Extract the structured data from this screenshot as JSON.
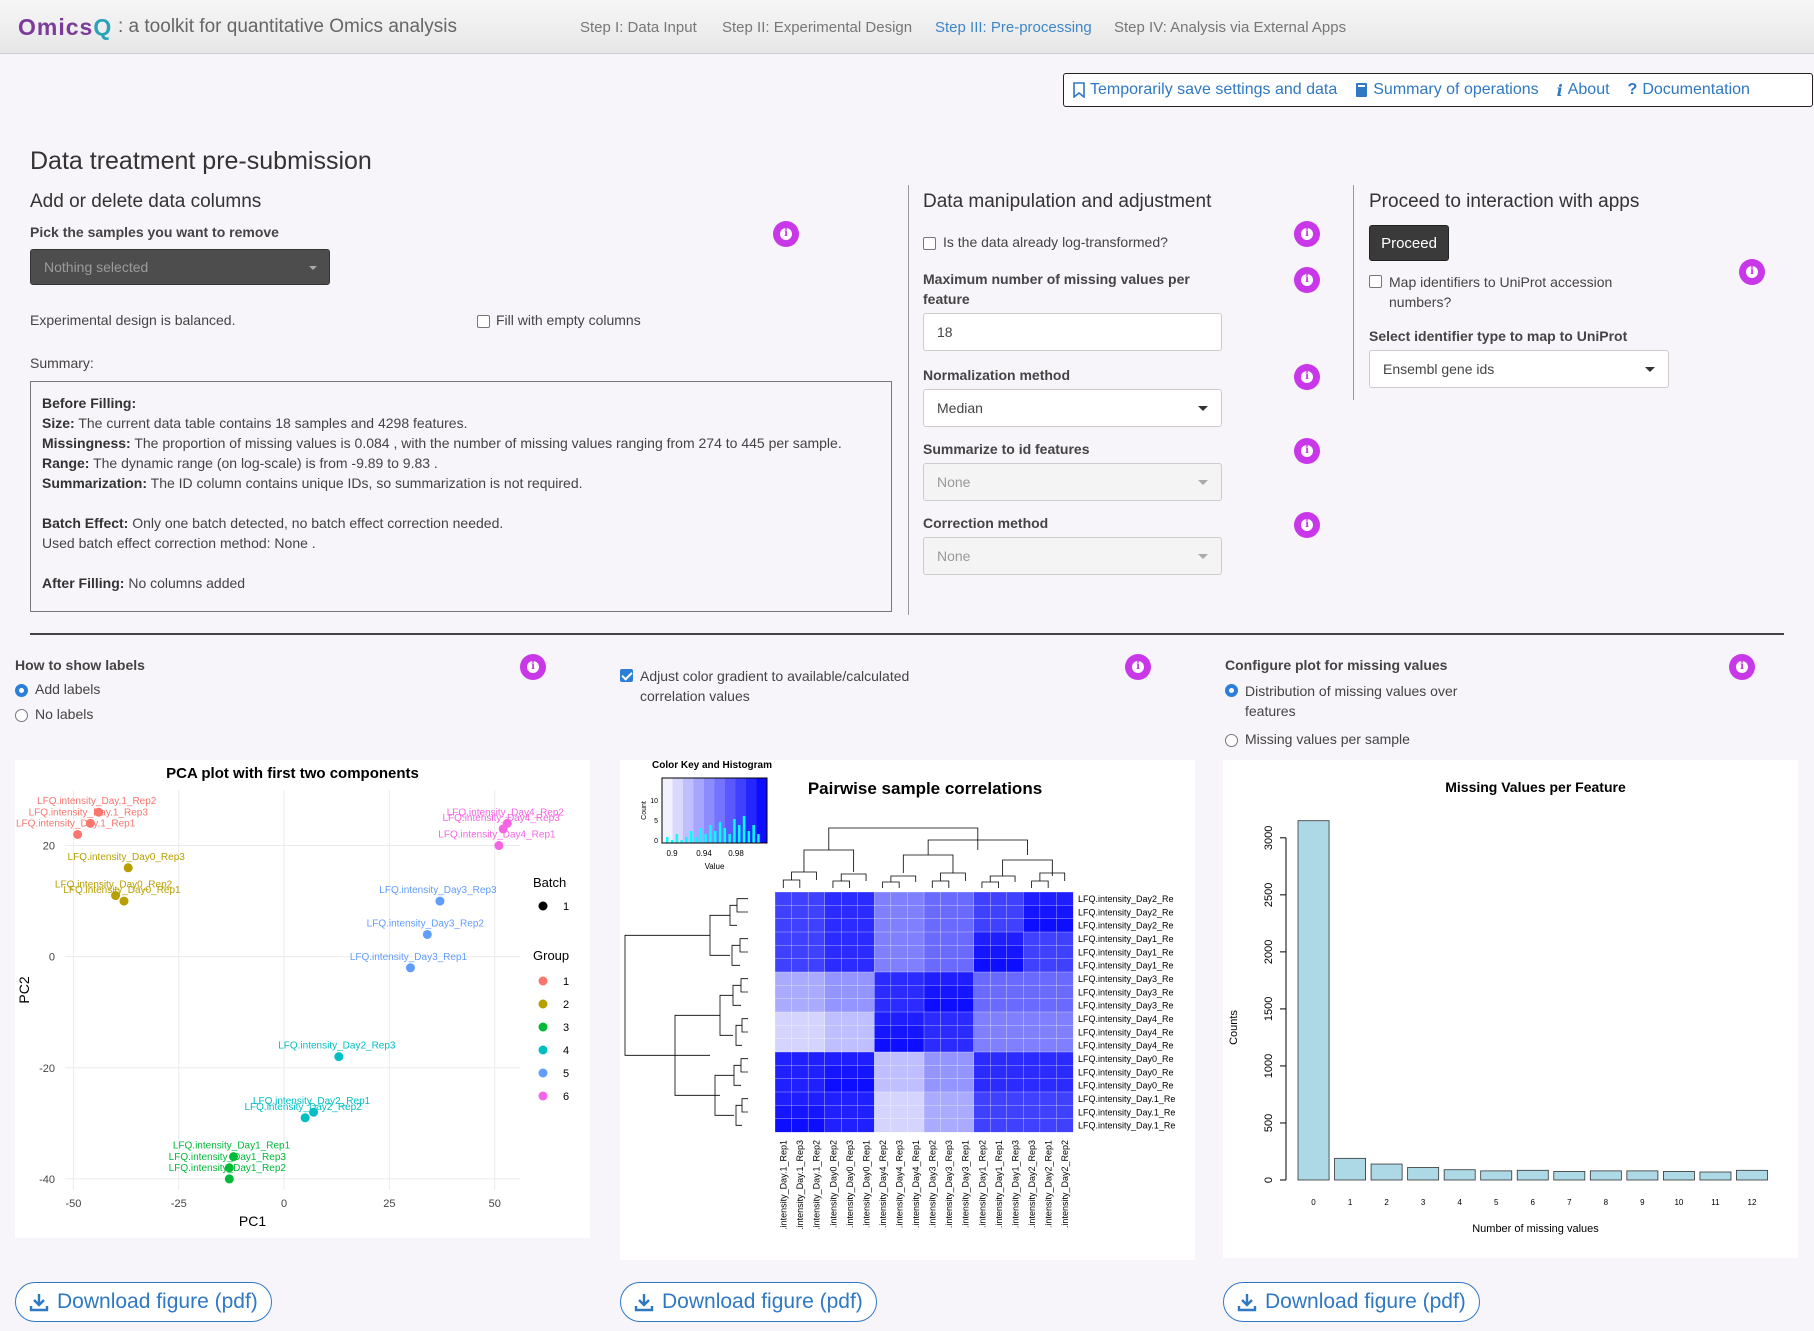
{
  "header": {
    "logo_part1": "Omics",
    "logo_part2": "Q",
    "tagline": ": a toolkit for quantitative Omics analysis",
    "nav": [
      "Step I: Data Input",
      "Step II: Experimental Design",
      "Step III: Pre-processing",
      "Step IV: Analysis via External Apps"
    ],
    "active_nav": "Step III: Pre-processing"
  },
  "actions": {
    "save": "Temporarily save settings and data",
    "summary": "Summary of operations",
    "about": "About",
    "docs": "Documentation"
  },
  "page_title": "Data treatment pre-submission",
  "columns_panel": {
    "heading": "Add or delete data columns",
    "pick_label": "Pick the samples you want to remove",
    "pick_value": "Nothing selected",
    "balanced_text": "Experimental design is balanced.",
    "fill_label": "Fill with empty columns",
    "fill_checked": false,
    "summary_label": "Summary:",
    "summary": {
      "before_title": "Before Filling:",
      "size_key": "Size:",
      "size_val": "The current data table contains 18 samples and 4298 features.",
      "miss_key": "Missingness:",
      "miss_val": "The proportion of missing values is 0.084 , with the number of missing values ranging from 274 to 445 per sample.",
      "range_key": "Range:",
      "range_val": "The dynamic range (on log-scale) is from -9.89 to 9.83 .",
      "summ_key": "Summarization:",
      "summ_val": "The ID column contains unique IDs, so summarization is not required.",
      "batch_key": "Batch Effect:",
      "batch_val": "Only one batch detected, no batch effect correction needed.",
      "batch_method": "Used batch effect correction method: None .",
      "after_key": "After Filling:",
      "after_val": "No columns added"
    }
  },
  "manip_panel": {
    "heading": "Data manipulation and adjustment",
    "log_label": "Is the data already log-transformed?",
    "log_checked": false,
    "maxmiss_label": "Maximum number of missing values per feature",
    "maxmiss_value": "18",
    "norm_label": "Normalization method",
    "norm_value": "Median",
    "summarize_label": "Summarize to id features",
    "summarize_value": "None",
    "correction_label": "Correction method",
    "correction_value": "None"
  },
  "proceed_panel": {
    "heading": "Proceed to interaction with apps",
    "proceed_btn": "Proceed",
    "map_label": "Map identifiers to UniProt accession numbers?",
    "map_checked": false,
    "idtype_label": "Select identifier type to map to UniProt",
    "idtype_value": "Ensembl gene ids"
  },
  "plot_controls": {
    "labels_heading": "How to show labels",
    "labels_options": [
      "Add labels",
      "No labels"
    ],
    "labels_selected": "Add labels",
    "gradient_label": "Adjust color gradient to available/calculated correlation values",
    "gradient_checked": true,
    "missing_heading": "Configure plot for missing values",
    "missing_options": [
      "Distribution of missing values over features",
      "Missing values per sample"
    ],
    "missing_selected": "Distribution of missing values over features"
  },
  "download_label": "Download figure (pdf)",
  "colors": {
    "accent": "#2f78c4",
    "info": "#c837e8",
    "bar": "#add8e6"
  },
  "chart_data": [
    {
      "type": "scatter",
      "title": "PCA plot with first two components",
      "xlabel": "PC1",
      "ylabel": "PC2",
      "xlim": [
        -52,
        56
      ],
      "ylim": [
        -42,
        30
      ],
      "xticks": [
        -50,
        -25,
        0,
        25,
        50
      ],
      "yticks": [
        20,
        0,
        -20,
        -40
      ],
      "legend_batch_title": "Batch",
      "legend_batch": [
        "1"
      ],
      "legend_group_title": "Group",
      "groups": [
        {
          "name": "1",
          "color": "#f8766d"
        },
        {
          "name": "2",
          "color": "#b79f00"
        },
        {
          "name": "3",
          "color": "#00ba38"
        },
        {
          "name": "4",
          "color": "#00bfc4"
        },
        {
          "name": "5",
          "color": "#619cff"
        },
        {
          "name": "6",
          "color": "#f564e3"
        }
      ],
      "points": [
        {
          "x": -44,
          "y": 26,
          "group": "1",
          "label": "LFQ.intensity_Day.1_Rep2"
        },
        {
          "x": -46,
          "y": 24,
          "group": "1",
          "label": "LFQ.intensity_Day.1_Rep3"
        },
        {
          "x": -49,
          "y": 22,
          "group": "1",
          "label": "LFQ.intensity_Day.1_Rep1"
        },
        {
          "x": -37,
          "y": 16,
          "group": "2",
          "label": "LFQ.intensity_Day0_Rep3"
        },
        {
          "x": -40,
          "y": 11,
          "group": "2",
          "label": "LFQ.intensity_Day0_Rep2"
        },
        {
          "x": -38,
          "y": 10,
          "group": "2",
          "label": "LFQ.intensity_Day0_Rep1"
        },
        {
          "x": -12,
          "y": -36,
          "group": "3",
          "label": "LFQ.intensity_Day1_Rep1"
        },
        {
          "x": -13,
          "y": -38,
          "group": "3",
          "label": "LFQ.intensity_Day1_Rep3"
        },
        {
          "x": -13,
          "y": -40,
          "group": "3",
          "label": "LFQ.intensity_Day1_Rep2"
        },
        {
          "x": 13,
          "y": -18,
          "group": "4",
          "label": "LFQ.intensity_Day2_Rep3"
        },
        {
          "x": 7,
          "y": -28,
          "group": "4",
          "label": "LFQ.intensity_Day2_Rep1"
        },
        {
          "x": 5,
          "y": -29,
          "group": "4",
          "label": "LFQ.intensity_Day2_Rep2"
        },
        {
          "x": 37,
          "y": 10,
          "group": "5",
          "label": "LFQ.intensity_Day3_Rep3"
        },
        {
          "x": 34,
          "y": 4,
          "group": "5",
          "label": "LFQ.intensity_Day3_Rep2"
        },
        {
          "x": 30,
          "y": -2,
          "group": "5",
          "label": "LFQ.intensity_Day3_Rep1"
        },
        {
          "x": 52,
          "y": 23,
          "group": "6",
          "label": "LFQ.intensity_Day4_Rep3"
        },
        {
          "x": 53,
          "y": 24,
          "group": "6",
          "label": "LFQ.intensity_Day4_Rep2"
        },
        {
          "x": 51,
          "y": 20,
          "group": "6",
          "label": "LFQ.intensity_Day4_Rep1"
        }
      ]
    },
    {
      "type": "heatmap",
      "title": "Pairwise sample correlations",
      "key_title": "Color Key and Histogram",
      "key_xlabel": "Value",
      "key_ylabel": "Count",
      "key_ticks": [
        "0.9",
        "0.94",
        "0.98"
      ],
      "key_yticks": [
        "0",
        "5",
        "10"
      ],
      "rows": [
        "LFQ.intensity_Day2_Re",
        "LFQ.intensity_Day2_Re",
        "LFQ.intensity_Day2_Re",
        "LFQ.intensity_Day1_Re",
        "LFQ.intensity_Day1_Re",
        "LFQ.intensity_Day1_Re",
        "LFQ.intensity_Day3_Re",
        "LFQ.intensity_Day3_Re",
        "LFQ.intensity_Day3_Re",
        "LFQ.intensity_Day4_Re",
        "LFQ.intensity_Day4_Re",
        "LFQ.intensity_Day4_Re",
        "LFQ.intensity_Day0_Re",
        "LFQ.intensity_Day0_Re",
        "LFQ.intensity_Day0_Re",
        "LFQ.intensity_Day.1_Re",
        "LFQ.intensity_Day.1_Re",
        "LFQ.intensity_Day.1_Re"
      ],
      "columns": [
        ".intensity_Day.1_Rep1",
        ".intensity_Day.1_Rep3",
        ".intensity_Day.1_Rep2",
        ".intensity_Day0_Rep2",
        ".intensity_Day0_Rep3",
        ".intensity_Day0_Rep1",
        ".intensity_Day4_Rep2",
        ".intensity_Day4_Rep3",
        ".intensity_Day4_Rep1",
        ".intensity_Day3_Rep2",
        ".intensity_Day3_Rep3",
        ".intensity_Day3_Rep1",
        ".intensity_Day1_Rep2",
        ".intensity_Day1_Rep1",
        ".intensity_Day1_Rep3",
        ".intensity_Day2_Rep3",
        ".intensity_Day2_Rep1",
        ".intensity_Day2_Rep2"
      ],
      "row_groups": [
        "a",
        "a",
        "a",
        "b",
        "b",
        "b",
        "c",
        "c",
        "c",
        "d",
        "d",
        "d",
        "e",
        "e",
        "e",
        "f",
        "f",
        "f"
      ],
      "col_groups": [
        "f",
        "f",
        "f",
        "e",
        "e",
        "e",
        "d",
        "d",
        "d",
        "c",
        "c",
        "c",
        "b",
        "b",
        "b",
        "a",
        "a",
        "a"
      ],
      "group_corr": {
        "a": {
          "a": 0.99,
          "b": 0.97,
          "c": 0.95,
          "d": 0.94,
          "e": 0.98,
          "f": 0.97
        },
        "b": {
          "a": 0.97,
          "b": 0.99,
          "c": 0.95,
          "d": 0.94,
          "e": 0.98,
          "f": 0.97
        },
        "c": {
          "a": 0.95,
          "b": 0.95,
          "c": 0.99,
          "d": 0.98,
          "e": 0.93,
          "f": 0.92
        },
        "d": {
          "a": 0.94,
          "b": 0.94,
          "c": 0.98,
          "d": 0.99,
          "e": 0.91,
          "f": 0.9
        },
        "e": {
          "a": 0.98,
          "b": 0.98,
          "c": 0.93,
          "d": 0.91,
          "e": 0.99,
          "f": 0.985
        },
        "f": {
          "a": 0.97,
          "b": 0.97,
          "c": 0.92,
          "d": 0.9,
          "e": 0.985,
          "f": 0.99
        }
      },
      "range": [
        0.88,
        1.0
      ]
    },
    {
      "type": "bar",
      "title": "Missing Values per Feature",
      "xlabel": "Number of missing values",
      "ylabel": "Counts",
      "categories": [
        "0",
        "1",
        "2",
        "3",
        "4",
        "5",
        "6",
        "7",
        "8",
        "9",
        "10",
        "11",
        "12"
      ],
      "values": [
        3150,
        190,
        140,
        110,
        90,
        80,
        85,
        75,
        80,
        80,
        75,
        70,
        85
      ],
      "yticks": [
        0,
        500,
        1000,
        1500,
        2000,
        2500,
        3000
      ],
      "ylim": [
        0,
        3200
      ]
    }
  ]
}
